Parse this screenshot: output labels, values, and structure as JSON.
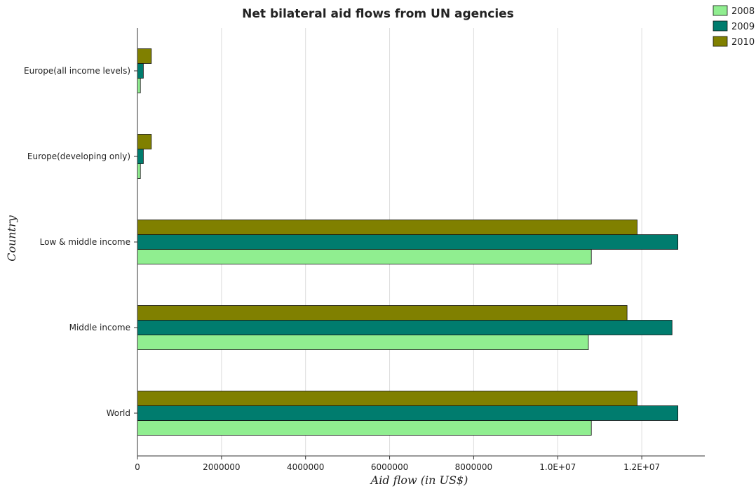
{
  "chart_data": {
    "type": "bar",
    "orientation": "horizontal",
    "title": "Net bilateral aid flows from UN agencies",
    "xlabel": "Aid flow (in US$)",
    "ylabel": "Country",
    "categories": [
      "Europe(all income levels)",
      "Europe(developing only)",
      "Low & middle income",
      "Middle income",
      "World"
    ],
    "series": [
      {
        "name": "2008",
        "color": "#90EE90",
        "values": [
          70000,
          70000,
          10800000,
          10730000,
          10800000
        ]
      },
      {
        "name": "2009",
        "color": "#007C6E",
        "values": [
          140000,
          140000,
          12860000,
          12720000,
          12860000
        ]
      },
      {
        "name": "2010",
        "color": "#808000",
        "values": [
          330000,
          330000,
          11890000,
          11650000,
          11890000
        ]
      }
    ],
    "xlim": [
      0,
      13500000
    ],
    "xticks": [
      0,
      2000000,
      4000000,
      6000000,
      8000000,
      10000000,
      12000000
    ],
    "xtick_labels": [
      "0",
      "2000000",
      "4000000",
      "6000000",
      "8000000",
      "1.0E+07",
      "1.2E+07"
    ],
    "grid": true,
    "legend_position": "top-right"
  }
}
